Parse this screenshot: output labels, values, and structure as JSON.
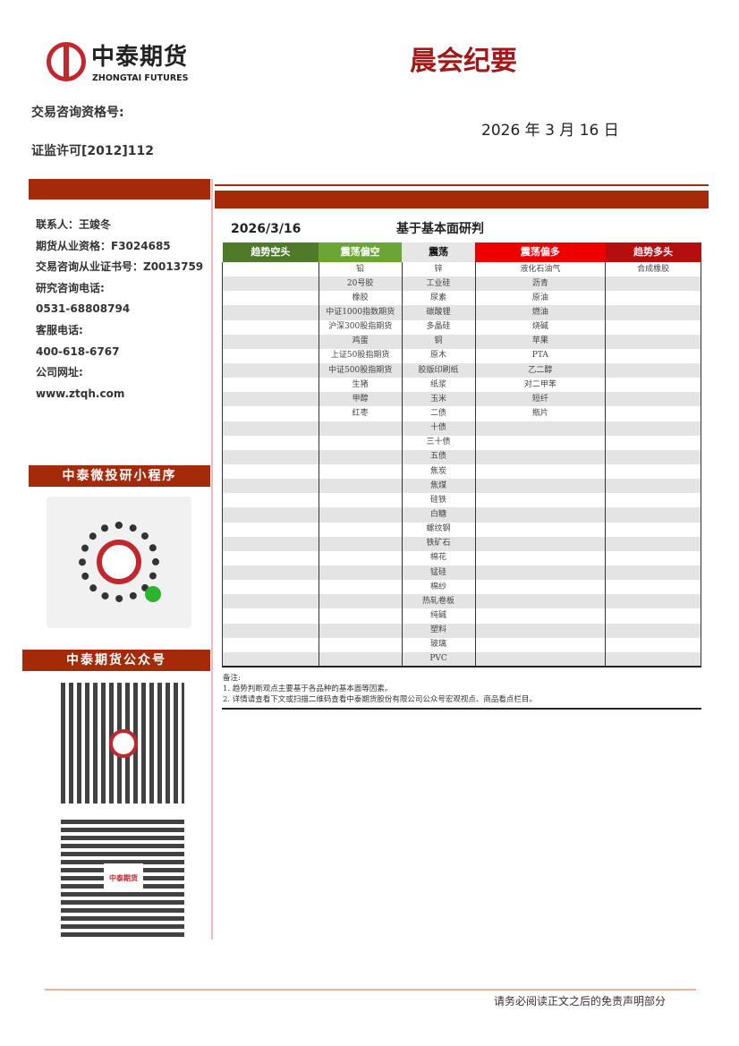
{
  "header": {
    "logo_cn": "中泰期货",
    "logo_en": "ZHONGTAI FUTURES",
    "title": "晨会纪要",
    "qualification_label": "交易咨询资格号:",
    "license": "证监许可[2012]112",
    "date": "2026 年 3 月 16 日"
  },
  "sidebar": {
    "contacts": [
      "联系人：王竣冬",
      "期货从业资格：F3024685",
      "交易咨询从业证书号：Z0013759",
      "研究咨询电话:",
      "0531-68808794",
      "客服电话:",
      "400-618-6767",
      "公司网址:",
      "www.ztqh.com"
    ],
    "mini_program_title": "中泰微投研小程序",
    "official_account_title": "中泰期货公众号",
    "qr_logo_text": "中泰期货"
  },
  "main": {
    "date": "2026/3/16",
    "heading": "基于基本面研判",
    "columns": [
      {
        "label": "趋势空头",
        "color": "#4f7a2a",
        "items": []
      },
      {
        "label": "震荡偏空",
        "color": "#6aa535",
        "items": [
          "铅",
          "20号胶",
          "橡胶",
          "中证1000指数期货",
          "沪深300股指期货",
          "鸡蛋",
          "上证50股指期货",
          "中证500股指期货",
          "生猪",
          "甲醇",
          "红枣"
        ]
      },
      {
        "label": "震荡",
        "color": "#e6e6e6",
        "items": [
          "锌",
          "工业硅",
          "尿素",
          "碳酸锂",
          "多晶硅",
          "铜",
          "原木",
          "胶版印刷纸",
          "纸浆",
          "玉米",
          "二债",
          "十债",
          "三十债",
          "五债",
          "焦炭",
          "焦煤",
          "硅铁",
          "白糖",
          "螺纹钢",
          "铁矿石",
          "棉花",
          "锰硅",
          "棉纱",
          "热轧卷板",
          "纯碱",
          "塑料",
          "玻璃",
          "PVC"
        ]
      },
      {
        "label": "震荡偏多",
        "color": "#ee0000",
        "items": [
          "液化石油气",
          "沥青",
          "原油",
          "燃油",
          "烧碱",
          "苹果",
          "PTA",
          "乙二醇",
          "对二甲苯",
          "短纤",
          "瓶片"
        ]
      },
      {
        "label": "趋势多头",
        "color": "#b50e0e",
        "items": [
          "合成橡胶"
        ]
      }
    ],
    "notes": [
      "备注:",
      "1. 趋势判断观点主要基于各品种的基本面等因素。",
      "2. 详情请查看下文或扫描二维码查看中泰期货股份有限公司公众号宏观视点、商品看点栏目。"
    ]
  },
  "footer": {
    "disclaimer": "请务必阅读正文之后的免责声明部分"
  }
}
